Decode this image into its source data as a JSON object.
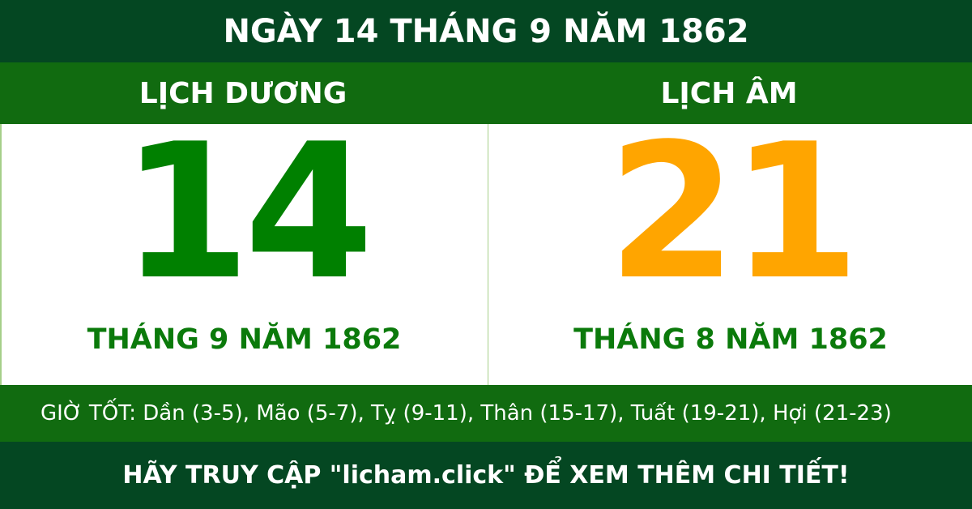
{
  "header": {
    "title": "NGÀY 14 THÁNG 9 NĂM 1862"
  },
  "solar": {
    "label": "LỊCH DƯƠNG",
    "day": "14",
    "month_year": "THÁNG 9 NĂM 1862",
    "color": "#008000"
  },
  "lunar": {
    "label": "LỊCH ÂM",
    "day": "21",
    "month_year": "THÁNG 8 NĂM 1862",
    "color": "#ffa500"
  },
  "good_hours": "GIỜ TỐT: Dần (3-5), Mão (5-7), Tỵ (9-11), Thân (15-17), Tuất (19-21), Hợi (21-23)",
  "footer": "HÃY TRUY CẬP \"licham.click\" ĐỂ XEM THÊM CHI TIẾT!",
  "colors": {
    "dark_green": "#044722",
    "green": "#116b10"
  }
}
